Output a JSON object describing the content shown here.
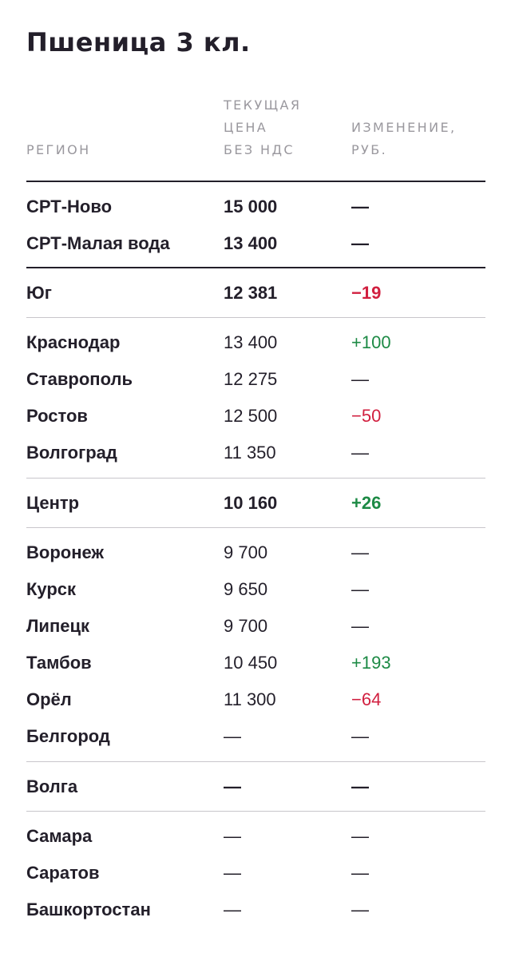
{
  "title": "Пшеница 3 кл.",
  "header": {
    "region": "РЕГИОН",
    "price": [
      "ТЕКУЩАЯ",
      "ЦЕНА",
      "БЕЗ НДС"
    ],
    "change": [
      "ИЗМЕНЕНИЕ,",
      "РУБ."
    ]
  },
  "colors": {
    "text": "#231f2a",
    "header": "#9a989e",
    "negative": "#d11f3f",
    "positive": "#1d8a45"
  },
  "groups": [
    {
      "rows": [
        {
          "region": "СРТ-Ново",
          "price": "15 000",
          "change": "—"
        },
        {
          "region": "СРТ-Малая вода",
          "price": "13 400",
          "change": "—"
        }
      ]
    },
    {
      "rows": [
        {
          "region": "Юг",
          "price": "12 381",
          "change": "−19"
        }
      ]
    },
    {
      "rows": [
        {
          "region": "Краснодар",
          "price": "13 400",
          "change": "+100"
        },
        {
          "region": "Ставрополь",
          "price": "12 275",
          "change": "—"
        },
        {
          "region": "Ростов",
          "price": "12 500",
          "change": "−50"
        },
        {
          "region": "Волгоград",
          "price": "11 350",
          "change": "—"
        }
      ]
    },
    {
      "rows": [
        {
          "region": "Центр",
          "price": "10 160",
          "change": "+26"
        }
      ]
    },
    {
      "rows": [
        {
          "region": "Воронеж",
          "price": "9 700",
          "change": "—"
        },
        {
          "region": "Курск",
          "price": "9 650",
          "change": "—"
        },
        {
          "region": "Липецк",
          "price": "9 700",
          "change": "—"
        },
        {
          "region": "Тамбов",
          "price": "10 450",
          "change": "+193"
        },
        {
          "region": "Орёл",
          "price": "11 300",
          "change": "−64"
        },
        {
          "region": "Белгород",
          "price": "—",
          "change": "—"
        }
      ]
    },
    {
      "rows": [
        {
          "region": "Волга",
          "price": "—",
          "change": "—"
        }
      ]
    },
    {
      "rows": [
        {
          "region": "Самара",
          "price": "—",
          "change": "—"
        },
        {
          "region": "Саратов",
          "price": "—",
          "change": "—"
        },
        {
          "region": "Башкортостан",
          "price": "—",
          "change": "—"
        }
      ]
    }
  ]
}
